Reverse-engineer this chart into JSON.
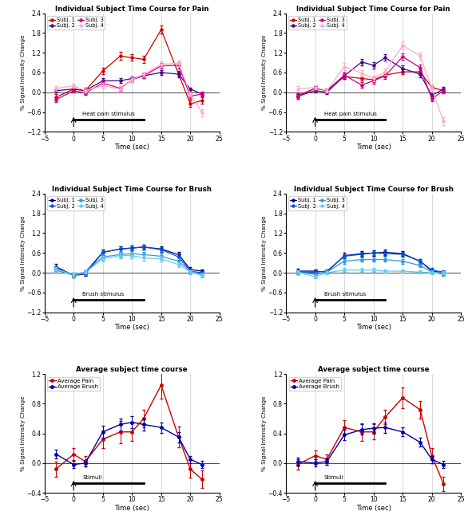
{
  "time": [
    -3,
    0,
    2,
    5,
    8,
    10,
    12,
    15,
    18,
    20,
    22
  ],
  "pain_left_s1": [
    -0.15,
    0.1,
    0.05,
    0.65,
    1.1,
    1.05,
    1.0,
    1.9,
    0.55,
    -0.35,
    -0.25
  ],
  "pain_left_s1_err": [
    0.1,
    0.08,
    0.08,
    0.1,
    0.12,
    0.1,
    0.1,
    0.12,
    0.1,
    0.1,
    0.1
  ],
  "pain_left_s2": [
    0.05,
    0.1,
    0.05,
    0.35,
    0.35,
    0.42,
    0.5,
    0.6,
    0.55,
    0.1,
    -0.05
  ],
  "pain_left_s2_err": [
    0.05,
    0.05,
    0.05,
    0.07,
    0.07,
    0.07,
    0.07,
    0.07,
    0.07,
    0.05,
    0.05
  ],
  "pain_left_s3": [
    -0.22,
    0.05,
    -0.02,
    0.28,
    0.12,
    0.38,
    0.5,
    0.8,
    0.82,
    -0.12,
    -0.05
  ],
  "pain_left_s3_err": [
    0.08,
    0.06,
    0.06,
    0.08,
    0.08,
    0.08,
    0.08,
    0.09,
    0.09,
    0.07,
    0.07
  ],
  "pain_left_s4": [
    0.12,
    0.2,
    0.05,
    0.2,
    0.1,
    0.38,
    0.55,
    0.85,
    0.88,
    -0.05,
    -0.62
  ],
  "pain_left_s4_err": [
    0.08,
    0.07,
    0.06,
    0.08,
    0.08,
    0.08,
    0.08,
    0.09,
    0.09,
    0.08,
    0.1
  ],
  "pain_right_s1": [
    -0.1,
    0.12,
    0.05,
    0.48,
    0.42,
    0.38,
    0.52,
    0.62,
    0.62,
    0.15,
    0.05
  ],
  "pain_right_s1_err": [
    0.06,
    0.06,
    0.05,
    0.07,
    0.07,
    0.07,
    0.07,
    0.08,
    0.08,
    0.06,
    0.06
  ],
  "pain_right_s2": [
    -0.12,
    0.05,
    0.0,
    0.5,
    0.92,
    0.82,
    1.05,
    0.72,
    0.55,
    -0.1,
    0.1
  ],
  "pain_right_s2_err": [
    0.07,
    0.06,
    0.06,
    0.09,
    0.1,
    0.1,
    0.1,
    0.09,
    0.09,
    0.08,
    0.07
  ],
  "pain_right_s3": [
    -0.12,
    0.12,
    0.05,
    0.52,
    0.22,
    0.35,
    0.5,
    1.08,
    0.75,
    -0.2,
    0.05
  ],
  "pain_right_s3_err": [
    0.07,
    0.07,
    0.06,
    0.09,
    0.09,
    0.09,
    0.09,
    0.1,
    0.1,
    0.08,
    0.08
  ],
  "pain_right_s4": [
    0.1,
    0.15,
    0.05,
    0.78,
    0.58,
    0.42,
    0.62,
    1.42,
    1.1,
    0.12,
    -0.88
  ],
  "pain_right_s4_err": [
    0.08,
    0.07,
    0.06,
    0.1,
    0.1,
    0.09,
    0.09,
    0.12,
    0.11,
    0.09,
    0.12
  ],
  "brush_left_s1": [
    0.18,
    -0.08,
    -0.04,
    0.62,
    0.72,
    0.75,
    0.78,
    0.72,
    0.55,
    0.1,
    0.05
  ],
  "brush_left_s1_err": [
    0.08,
    0.06,
    0.05,
    0.08,
    0.08,
    0.08,
    0.08,
    0.08,
    0.08,
    0.06,
    0.06
  ],
  "brush_left_s2": [
    0.12,
    -0.05,
    0.02,
    0.62,
    0.72,
    0.75,
    0.78,
    0.7,
    0.48,
    0.05,
    0.0
  ],
  "brush_left_s2_err": [
    0.07,
    0.06,
    0.05,
    0.08,
    0.08,
    0.08,
    0.08,
    0.08,
    0.08,
    0.06,
    0.06
  ],
  "brush_left_s3": [
    0.08,
    -0.08,
    0.0,
    0.48,
    0.55,
    0.58,
    0.55,
    0.5,
    0.35,
    0.05,
    -0.05
  ],
  "brush_left_s3_err": [
    0.07,
    0.06,
    0.06,
    0.08,
    0.08,
    0.08,
    0.08,
    0.08,
    0.08,
    0.06,
    0.06
  ],
  "brush_left_s4": [
    0.1,
    -0.05,
    0.02,
    0.42,
    0.52,
    0.52,
    0.45,
    0.42,
    0.25,
    0.02,
    -0.08
  ],
  "brush_left_s4_err": [
    0.07,
    0.06,
    0.05,
    0.08,
    0.08,
    0.08,
    0.08,
    0.08,
    0.07,
    0.06,
    0.06
  ],
  "brush_right_s1": [
    0.05,
    0.05,
    0.02,
    0.52,
    0.58,
    0.6,
    0.62,
    0.58,
    0.35,
    0.05,
    0.0
  ],
  "brush_right_s1_err": [
    0.07,
    0.06,
    0.05,
    0.08,
    0.08,
    0.08,
    0.08,
    0.08,
    0.07,
    0.06,
    0.06
  ],
  "brush_right_s2": [
    0.02,
    0.02,
    0.05,
    0.5,
    0.56,
    0.6,
    0.58,
    0.56,
    0.35,
    0.08,
    0.02
  ],
  "brush_right_s2_err": [
    0.06,
    0.06,
    0.05,
    0.07,
    0.07,
    0.07,
    0.07,
    0.07,
    0.07,
    0.06,
    0.05
  ],
  "brush_right_s3": [
    0.02,
    -0.05,
    0.02,
    0.35,
    0.4,
    0.4,
    0.4,
    0.35,
    0.22,
    0.02,
    -0.05
  ],
  "brush_right_s3_err": [
    0.06,
    0.05,
    0.05,
    0.07,
    0.07,
    0.07,
    0.07,
    0.07,
    0.06,
    0.05,
    0.05
  ],
  "brush_right_s4": [
    0.02,
    -0.12,
    0.0,
    0.08,
    0.08,
    0.08,
    0.05,
    0.05,
    0.02,
    0.0,
    0.0
  ],
  "brush_right_s4_err": [
    0.05,
    0.05,
    0.04,
    0.06,
    0.06,
    0.06,
    0.05,
    0.05,
    0.05,
    0.04,
    0.04
  ],
  "avg_pain_left": [
    -0.08,
    0.12,
    0.02,
    0.32,
    0.42,
    0.42,
    0.6,
    1.05,
    0.35,
    -0.08,
    -0.22
  ],
  "avg_pain_left_err": [
    0.1,
    0.08,
    0.07,
    0.12,
    0.15,
    0.12,
    0.12,
    0.18,
    0.14,
    0.12,
    0.12
  ],
  "avg_brush_left": [
    0.12,
    -0.02,
    0.0,
    0.42,
    0.52,
    0.55,
    0.52,
    0.48,
    0.35,
    0.05,
    -0.02
  ],
  "avg_brush_left_err": [
    0.06,
    0.05,
    0.04,
    0.08,
    0.08,
    0.08,
    0.08,
    0.07,
    0.07,
    0.05,
    0.05
  ],
  "avg_pain_right": [
    -0.02,
    0.1,
    0.05,
    0.48,
    0.42,
    0.42,
    0.62,
    0.88,
    0.72,
    0.1,
    -0.28
  ],
  "avg_pain_right_err": [
    0.07,
    0.07,
    0.07,
    0.1,
    0.12,
    0.1,
    0.1,
    0.14,
    0.12,
    0.1,
    0.1
  ],
  "avg_brush_right": [
    0.02,
    0.0,
    0.02,
    0.38,
    0.45,
    0.47,
    0.48,
    0.42,
    0.28,
    0.05,
    -0.02
  ],
  "avg_brush_right_err": [
    0.05,
    0.05,
    0.04,
    0.07,
    0.07,
    0.07,
    0.07,
    0.06,
    0.06,
    0.05,
    0.05
  ],
  "pain_colors": [
    "#cc0000",
    "#440088",
    "#cc0088",
    "#ffaacc"
  ],
  "brush_colors": [
    "#000088",
    "#0055cc",
    "#3399dd",
    "#66ccee"
  ],
  "avg_pain_color": "#cc0000",
  "avg_brush_color": "#0000aa",
  "pain_title": "Individual Subject Time Course for Pain",
  "brush_title": "Individual Subject Time Course for Brush",
  "avg_title": "Average subject time course",
  "ylabel": "% Signal Intensity Change",
  "xlabel": "Time (sec)",
  "ylim_indiv": [
    -1.2,
    2.4
  ],
  "ylim_avg": [
    -0.4,
    1.2
  ],
  "xlim": [
    -5,
    25
  ],
  "yticks_indiv": [
    -1.2,
    -0.6,
    0.0,
    0.6,
    1.2,
    1.8,
    2.4
  ],
  "yticks_avg": [
    -0.4,
    0.0,
    0.4,
    0.8,
    1.2
  ],
  "xticks": [
    -5,
    0,
    5,
    10,
    15,
    20,
    25
  ],
  "heat_label": "Heat pain stimulus",
  "brush_label": "Brush stimulus",
  "stimuli_label": "Stimuli",
  "legend_pain_labels": [
    "Subj. 1",
    "Subj. 2",
    "Subj. 3",
    "Subj. 4"
  ],
  "legend_brush_labels": [
    "Subj. 1",
    "Subj. 2",
    "Subj. 3",
    "Subj. 4"
  ],
  "legend_avg_labels": [
    "Average Pain",
    "Average Brush"
  ],
  "background_color": "#ffffff",
  "grid_color": "#cccccc"
}
